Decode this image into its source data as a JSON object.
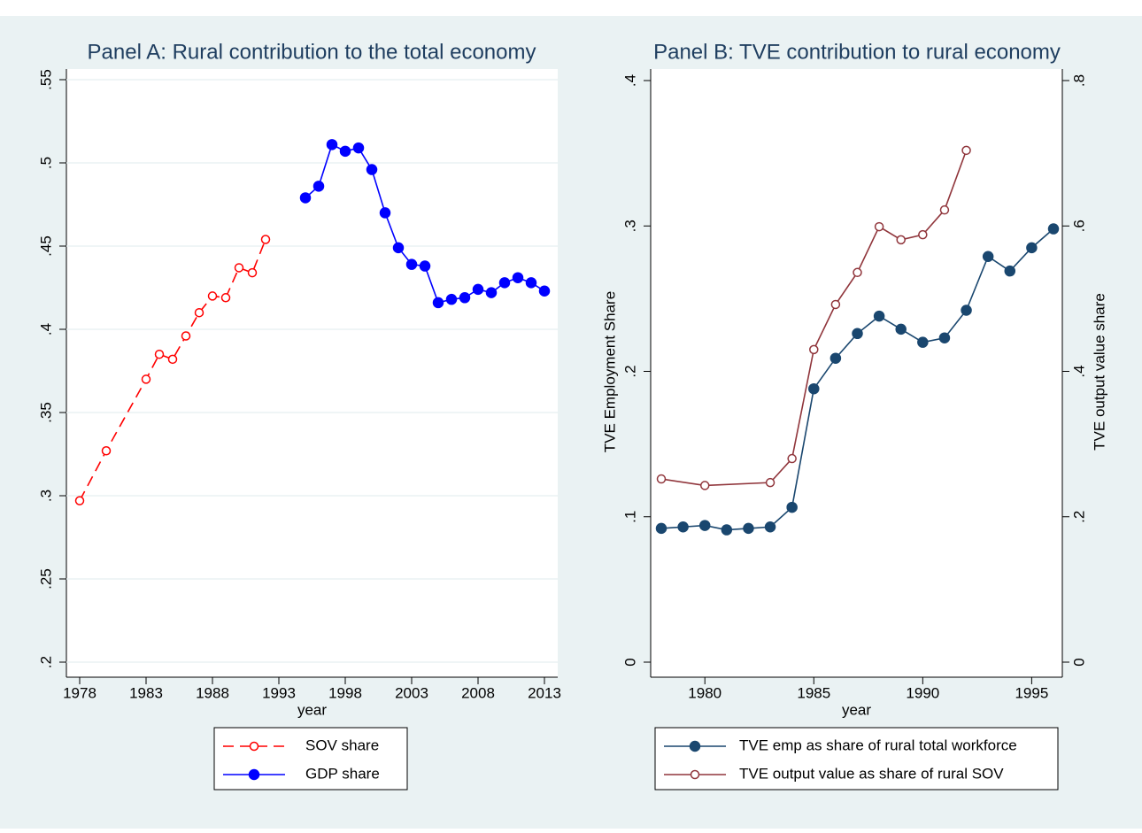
{
  "chart_data": [
    {
      "type": "line",
      "title": "Panel A: Rural contribution to the total economy",
      "xlabel": "year",
      "xlim": [
        1978,
        2013
      ],
      "xticks": [
        1978,
        1983,
        1988,
        1993,
        1998,
        2003,
        2008,
        2013
      ],
      "ylim": [
        0.2,
        0.55
      ],
      "yticks": [
        {
          "value": 0.2,
          "label": ".2"
        },
        {
          "value": 0.25,
          "label": ".25"
        },
        {
          "value": 0.3,
          "label": ".3"
        },
        {
          "value": 0.35,
          "label": ".35"
        },
        {
          "value": 0.4,
          "label": ".4"
        },
        {
          "value": 0.45,
          "label": ".45"
        },
        {
          "value": 0.5,
          "label": ".5"
        },
        {
          "value": 0.55,
          "label": ".55"
        }
      ],
      "grid": true,
      "series": [
        {
          "name": "SOV share",
          "color": "#ff0000",
          "dash": true,
          "marker": "hollow",
          "x": [
            1978,
            1980,
            1983,
            1984,
            1985,
            1986,
            1987,
            1988,
            1989,
            1990,
            1991,
            1992
          ],
          "values": [
            0.297,
            0.327,
            0.37,
            0.385,
            0.382,
            0.396,
            0.41,
            0.42,
            0.419,
            0.437,
            0.434,
            0.454
          ]
        },
        {
          "name": "GDP share",
          "color": "#0000ff",
          "dash": false,
          "marker": "filled",
          "x": [
            1995,
            1996,
            1997,
            1998,
            1999,
            2000,
            2001,
            2002,
            2003,
            2004,
            2005,
            2006,
            2007,
            2008,
            2009,
            2010,
            2011,
            2012,
            2013
          ],
          "values": [
            0.479,
            0.486,
            0.511,
            0.507,
            0.509,
            0.496,
            0.47,
            0.449,
            0.439,
            0.438,
            0.416,
            0.418,
            0.419,
            0.424,
            0.422,
            0.428,
            0.431,
            0.428,
            0.423
          ]
        }
      ]
    },
    {
      "type": "line",
      "title": "Panel B: TVE contribution to rural economy",
      "xlabel": "year",
      "ylabel": "TVE Employment Share",
      "y2label": "TVE output value share",
      "xlim": [
        1978,
        1996
      ],
      "xticks": [
        1980,
        1985,
        1990,
        1995
      ],
      "ylim": [
        0,
        0.4
      ],
      "yticks": [
        0,
        {
          "value": 0.1,
          "label": ".1"
        },
        {
          "value": 0.2,
          "label": ".2"
        },
        {
          "value": 0.3,
          "label": ".3"
        },
        {
          "value": 0.4,
          "label": ".4"
        }
      ],
      "y2lim": [
        0,
        0.8
      ],
      "y2ticks": [
        0,
        {
          "value": 0.2,
          "label": ".2"
        },
        {
          "value": 0.4,
          "label": ".4"
        },
        {
          "value": 0.6,
          "label": ".6"
        },
        {
          "value": 0.8,
          "label": ".8"
        }
      ],
      "grid": false,
      "series": [
        {
          "name": "TVE emp as share of rural total workforce",
          "color": "#1a476f",
          "dash": false,
          "marker": "filled",
          "x": [
            1978,
            1979,
            1980,
            1981,
            1982,
            1983,
            1984,
            1985,
            1986,
            1987,
            1988,
            1989,
            1990,
            1991,
            1992,
            1993,
            1994,
            1995,
            1996
          ],
          "values": [
            0.092,
            0.093,
            0.094,
            0.091,
            0.092,
            0.093,
            0.1065,
            0.188,
            0.209,
            0.226,
            0.238,
            0.229,
            0.22,
            0.223,
            0.242,
            0.279,
            0.269,
            0.285,
            0.298
          ]
        },
        {
          "name": "TVE output value as share of rural SOV",
          "color": "#90353b",
          "dash": false,
          "marker": "hollow",
          "axis": "y2",
          "x": [
            1978,
            1980,
            1983,
            1984,
            1985,
            1986,
            1987,
            1988,
            1989,
            1990,
            1991,
            1992
          ],
          "values": [
            0.252,
            0.243,
            0.247,
            0.28,
            0.43,
            0.492,
            0.536,
            0.599,
            0.581,
            0.588,
            0.622,
            0.704
          ]
        }
      ]
    }
  ]
}
